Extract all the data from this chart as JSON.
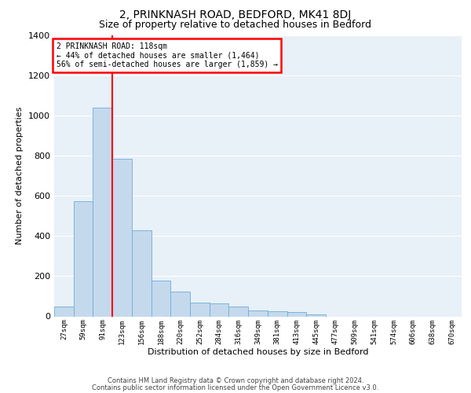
{
  "title1": "2, PRINKNASH ROAD, BEDFORD, MK41 8DJ",
  "title2": "Size of property relative to detached houses in Bedford",
  "xlabel": "Distribution of detached houses by size in Bedford",
  "ylabel": "Number of detached properties",
  "categories": [
    "27sqm",
    "59sqm",
    "91sqm",
    "123sqm",
    "156sqm",
    "188sqm",
    "220sqm",
    "252sqm",
    "284sqm",
    "316sqm",
    "349sqm",
    "381sqm",
    "413sqm",
    "445sqm",
    "477sqm",
    "509sqm",
    "541sqm",
    "574sqm",
    "606sqm",
    "638sqm",
    "670sqm"
  ],
  "values": [
    50,
    575,
    1040,
    785,
    430,
    180,
    125,
    70,
    65,
    50,
    30,
    25,
    20,
    10,
    0,
    0,
    0,
    0,
    0,
    0,
    0
  ],
  "bar_color": "#c5d9ed",
  "bar_edge_color": "#6aaed6",
  "vline_color": "red",
  "vline_pos": 2.5,
  "annotation_title": "2 PRINKNASH ROAD: 118sqm",
  "annotation_line1": "← 44% of detached houses are smaller (1,464)",
  "annotation_line2": "56% of semi-detached houses are larger (1,859) →",
  "annotation_box_color": "white",
  "annotation_box_edge": "red",
  "ylim": [
    0,
    1400
  ],
  "yticks": [
    0,
    200,
    400,
    600,
    800,
    1000,
    1200,
    1400
  ],
  "bg_color": "#e8f0f8",
  "title1_fontsize": 10,
  "title2_fontsize": 9,
  "footer1": "Contains HM Land Registry data © Crown copyright and database right 2024.",
  "footer2": "Contains public sector information licensed under the Open Government Licence v3.0."
}
